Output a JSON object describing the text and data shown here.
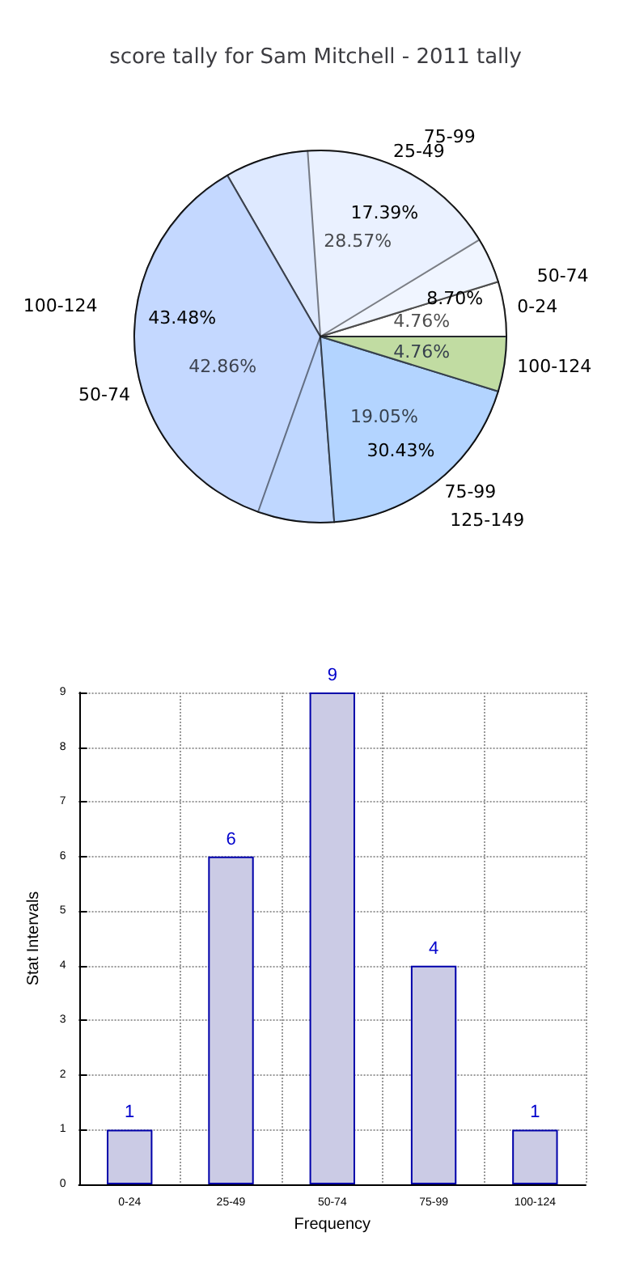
{
  "chart_data": [
    {
      "type": "pie",
      "title": "score tally for Sam Mitchell - 2011 tally",
      "categories": [
        "0-24",
        "25-49",
        "50-74",
        "75-99",
        "100-124"
      ],
      "values": [
        4.76,
        28.57,
        42.86,
        19.05,
        4.76
      ],
      "colors": [
        "#ffffff",
        "#eaf1ff",
        "#c5d8ff",
        "#b3d5ff",
        "#c8e07a"
      ],
      "value_labels": [
        "4.76%",
        "28.57%",
        "42.86%",
        "19.05%",
        "4.76%"
      ]
    },
    {
      "type": "pie",
      "categories": [
        "50-74",
        "75-99",
        "100-124",
        "125-149"
      ],
      "values": [
        8.7,
        17.39,
        43.48,
        30.43
      ],
      "colors": [
        "#ffffff",
        "#eaf1ff",
        "#c5d8ff",
        "#b3d5ff"
      ],
      "value_labels": [
        "8.70%",
        "17.39%",
        "43.48%",
        "30.43%"
      ]
    },
    {
      "type": "bar",
      "categories": [
        "0-24",
        "25-49",
        "50-74",
        "75-99",
        "100-124"
      ],
      "values": [
        1,
        6,
        9,
        4,
        1
      ],
      "color": "#cbcbe5",
      "xlabel": "Frequency",
      "ylabel": "Stat Intervals",
      "ylim": [
        0,
        9
      ],
      "yticks": [
        0,
        1,
        2,
        3,
        4,
        5,
        6,
        7,
        8,
        9
      ],
      "grid": true,
      "data_labels": true
    }
  ]
}
